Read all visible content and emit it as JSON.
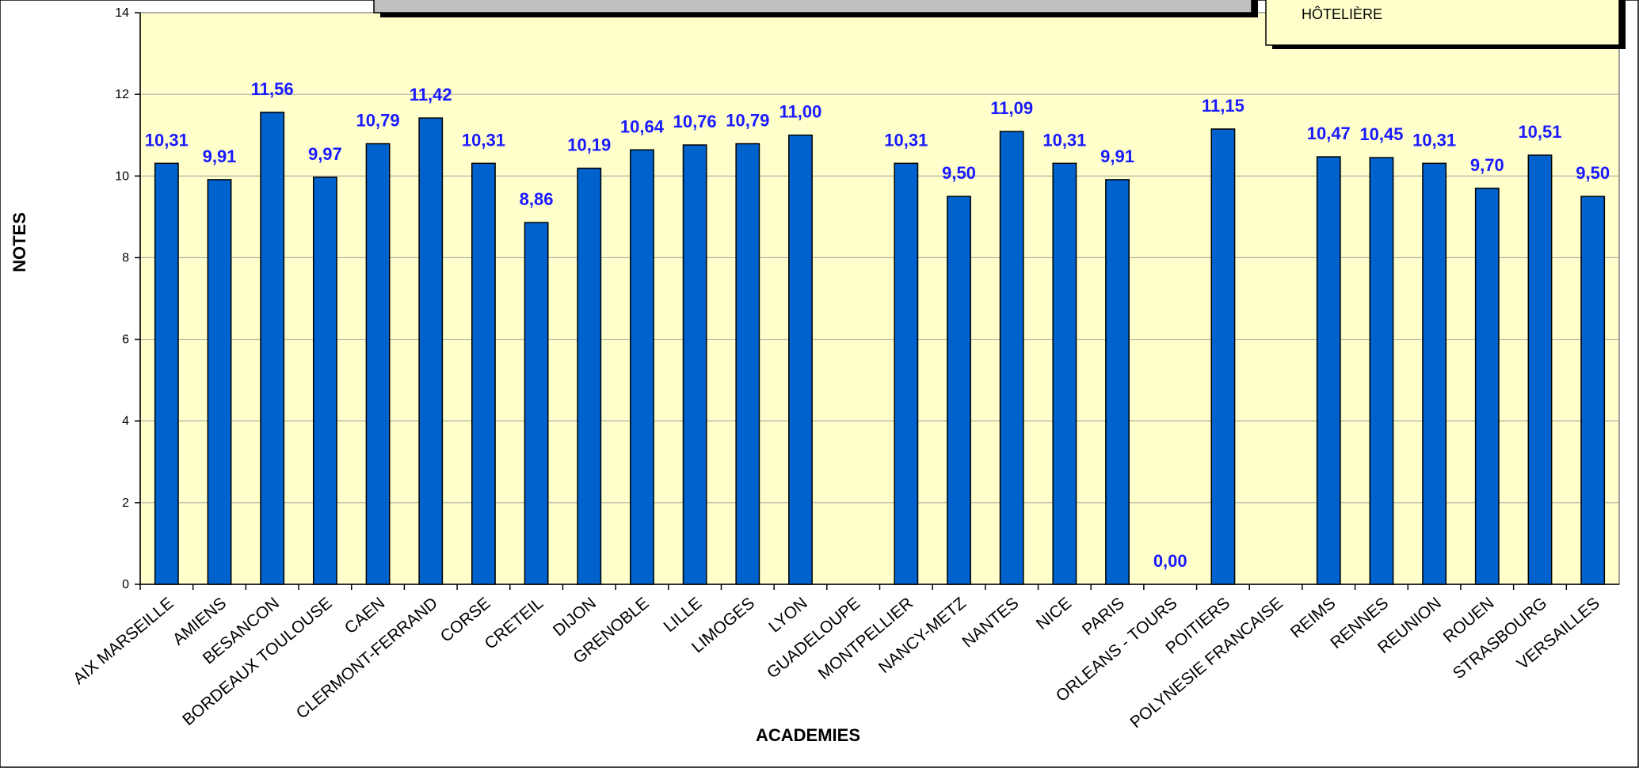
{
  "chart_data": {
    "type": "bar",
    "x_label": "ACADEMIES",
    "y_label": "NOTES",
    "legend_text": "HÔTELIÈRE",
    "categories": [
      "AIX  MARSEILLE",
      "AMIENS",
      "BESANCON",
      "BORDEAUX TOULOUSE",
      "CAEN",
      "CLERMONT-FERRAND",
      "CORSE",
      "CRETEIL",
      "DIJON",
      "GRENOBLE",
      "LILLE",
      "LIMOGES",
      "LYON",
      "GUADELOUPE",
      "MONTPELLIER",
      "NANCY-METZ",
      "NANTES",
      "NICE",
      "PARIS",
      "ORLEANS - TOURS",
      "POITIERS",
      "POLYNESIE FRANCAISE",
      "REIMS",
      "RENNES",
      "REUNION",
      "ROUEN",
      "STRASBOURG",
      "VERSAILLES"
    ],
    "values": [
      10.31,
      9.91,
      11.56,
      9.97,
      10.79,
      11.42,
      10.31,
      8.86,
      10.19,
      10.64,
      10.76,
      10.79,
      11.0,
      null,
      10.31,
      9.5,
      11.09,
      10.31,
      9.91,
      0.0,
      11.15,
      null,
      10.47,
      10.45,
      10.31,
      9.7,
      10.51,
      9.5
    ],
    "value_labels": [
      "10,31",
      "9,91",
      "11,56",
      "9,97",
      "10,79",
      "11,42",
      "10,31",
      "8,86",
      "10,19",
      "10,64",
      "10,76",
      "10,79",
      "11,00",
      null,
      "10,31",
      "9,50",
      "11,09",
      "10,31",
      "9,91",
      "0,00",
      "11,15",
      null,
      "10,47",
      "10,45",
      "10,31",
      "9,70",
      "10,51",
      "9,50"
    ],
    "color": "#0062cc",
    "label_color": "#1a1aff",
    "ylim": [
      0,
      14
    ],
    "yticks": [
      0,
      2,
      4,
      6,
      8,
      10,
      12,
      14
    ],
    "grid": true
  }
}
